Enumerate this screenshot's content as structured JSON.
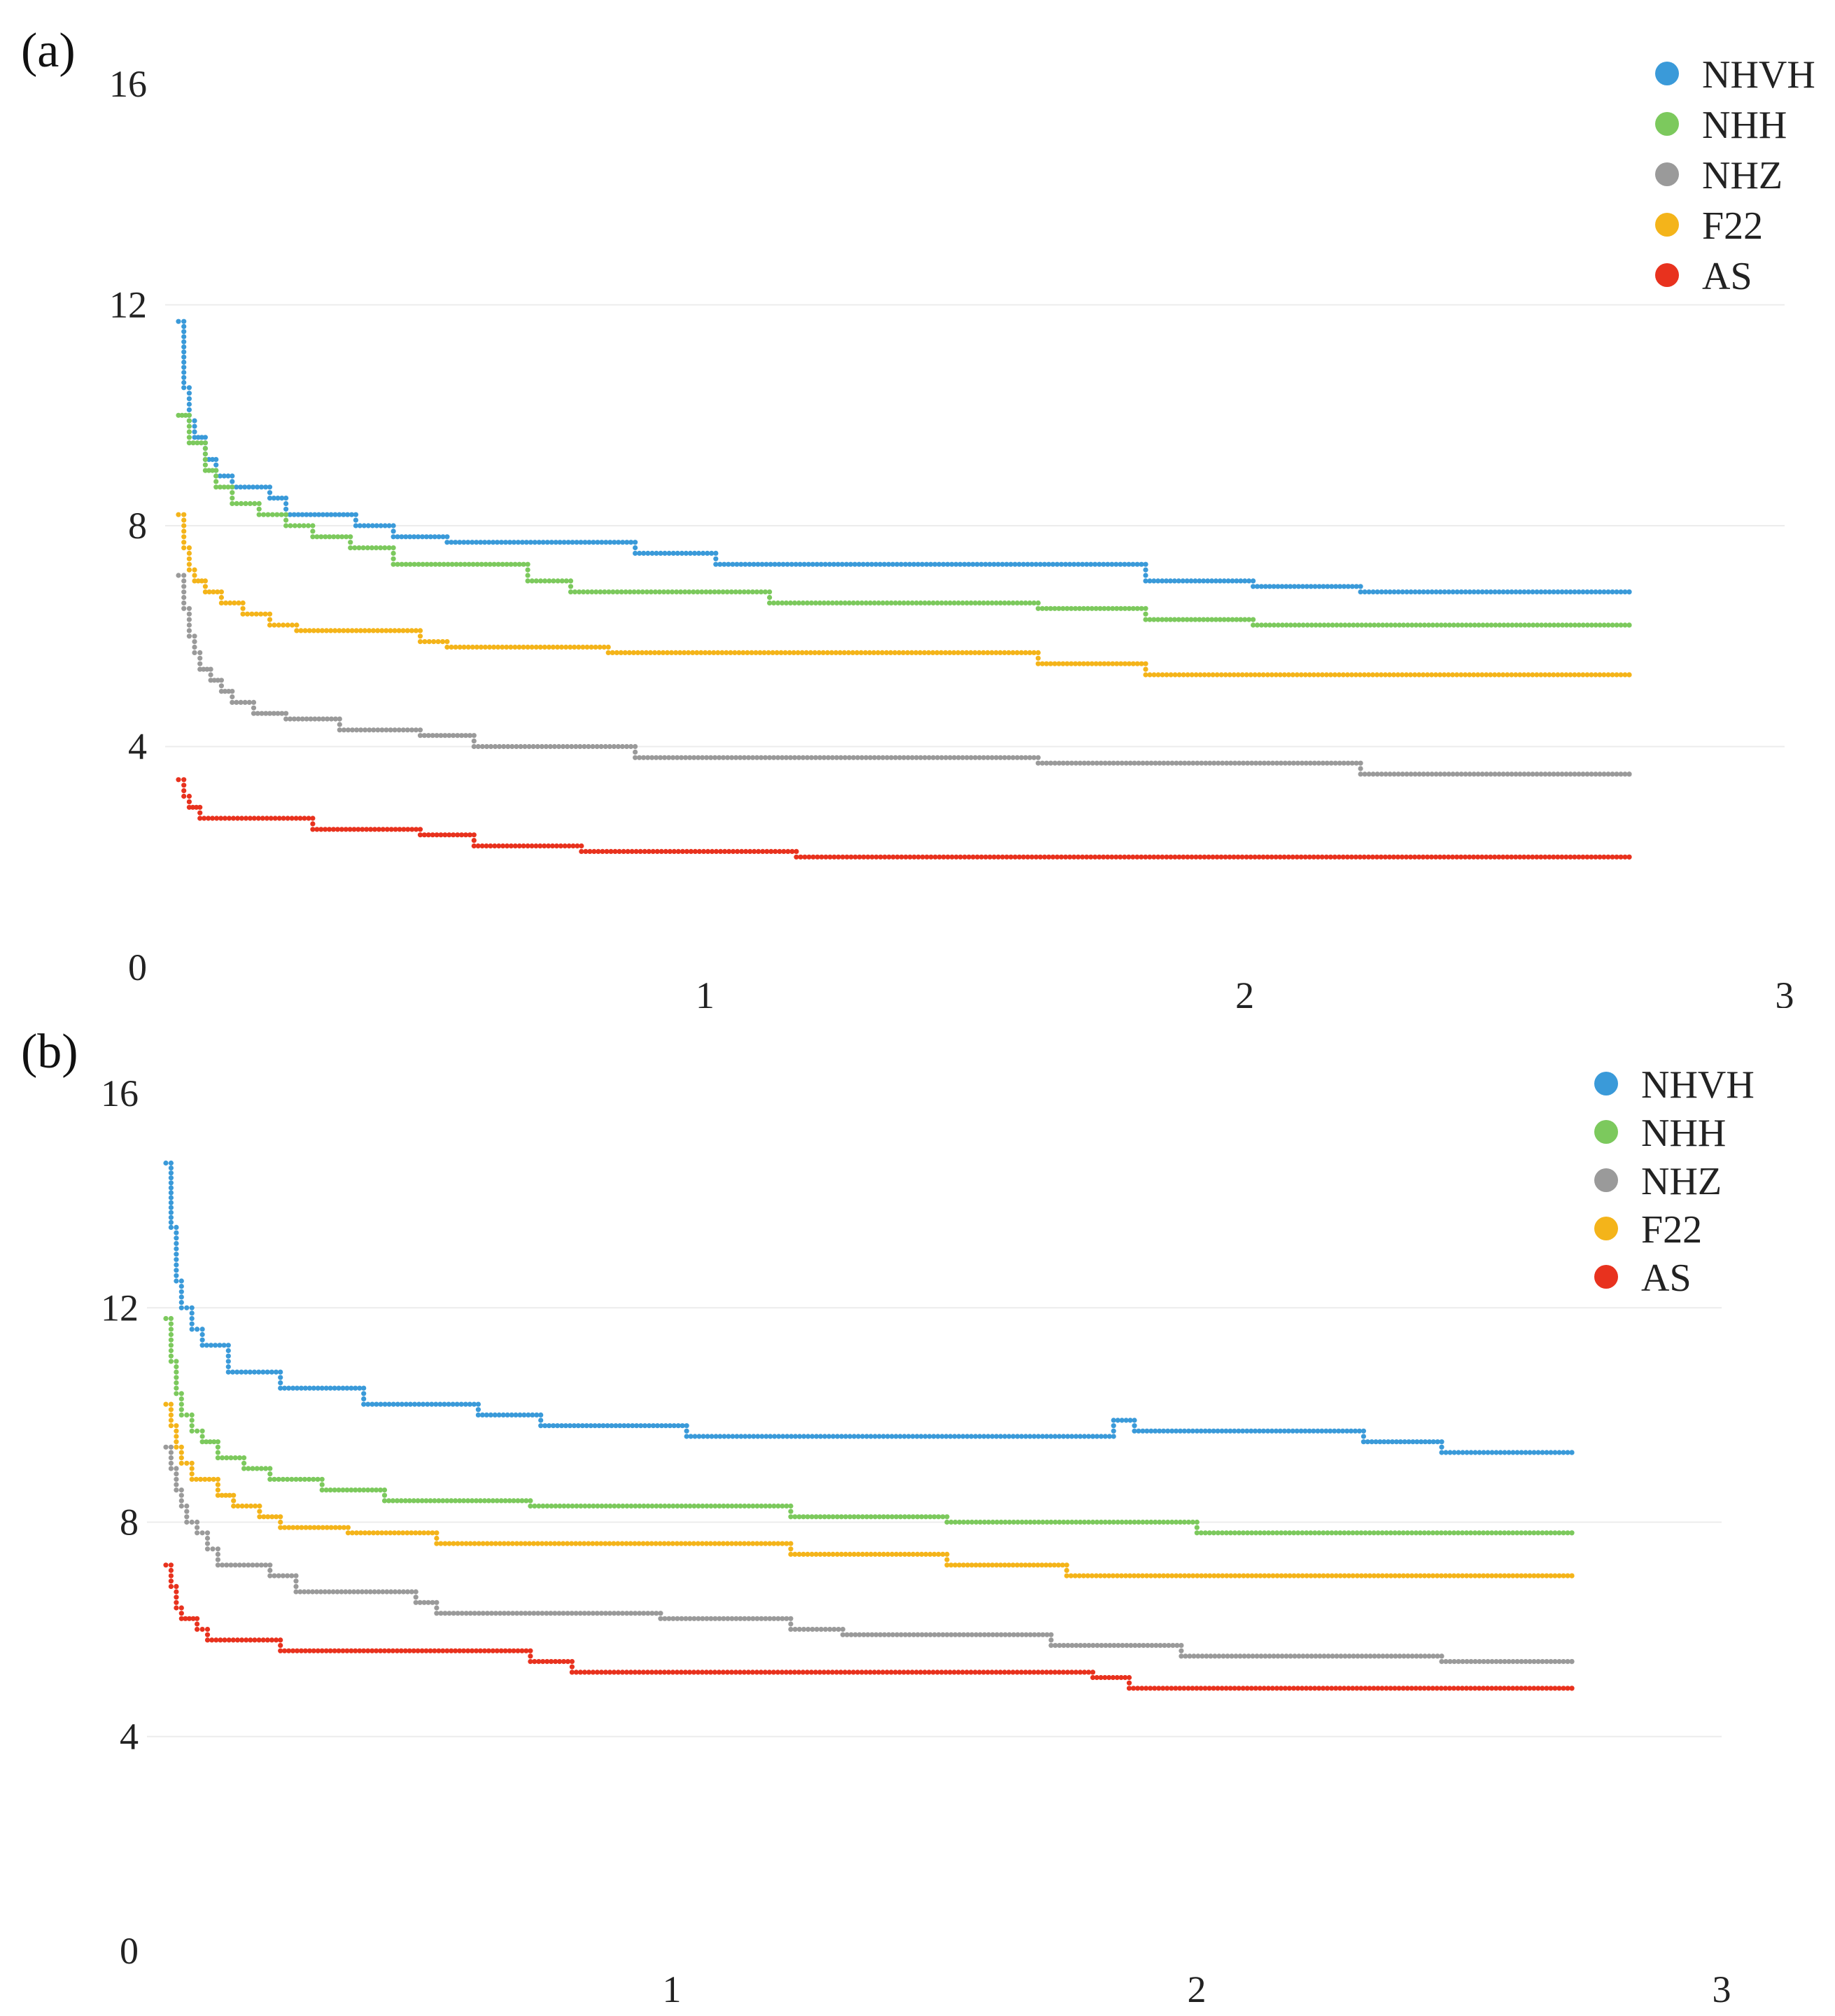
{
  "chart_data": [
    {
      "type": "scatter",
      "panel_label": "(a)",
      "title": "",
      "xlabel": "",
      "ylabel": "",
      "xlim": [
        0,
        3
      ],
      "ylim": [
        0,
        16
      ],
      "x_ticks": [
        "1",
        "2",
        "3"
      ],
      "y_ticks": [
        "0",
        "4",
        "8",
        "12",
        "16"
      ],
      "grid": true,
      "legend_position": "top-right",
      "series": [
        {
          "name": "NHVH",
          "color": "#3a9ad9",
          "steps": [
            [
              0.0,
              11.7
            ],
            [
              0.01,
              10.5
            ],
            [
              0.02,
              9.9
            ],
            [
              0.03,
              9.6
            ],
            [
              0.05,
              9.2
            ],
            [
              0.07,
              8.9
            ],
            [
              0.1,
              8.7
            ],
            [
              0.17,
              8.5
            ],
            [
              0.2,
              8.2
            ],
            [
              0.33,
              8.0
            ],
            [
              0.4,
              7.8
            ],
            [
              0.5,
              7.7
            ],
            [
              0.85,
              7.5
            ],
            [
              1.0,
              7.3
            ],
            [
              1.8,
              7.0
            ],
            [
              2.0,
              6.9
            ],
            [
              2.2,
              6.8
            ],
            [
              2.7,
              6.8
            ]
          ]
        },
        {
          "name": "NHH",
          "color": "#7cc95d",
          "steps": [
            [
              0.0,
              10.0
            ],
            [
              0.02,
              9.5
            ],
            [
              0.05,
              9.0
            ],
            [
              0.07,
              8.7
            ],
            [
              0.1,
              8.4
            ],
            [
              0.15,
              8.2
            ],
            [
              0.2,
              8.0
            ],
            [
              0.25,
              7.8
            ],
            [
              0.32,
              7.6
            ],
            [
              0.4,
              7.3
            ],
            [
              0.65,
              7.0
            ],
            [
              0.73,
              6.8
            ],
            [
              1.1,
              6.6
            ],
            [
              1.6,
              6.5
            ],
            [
              1.8,
              6.3
            ],
            [
              2.0,
              6.2
            ],
            [
              2.7,
              6.2
            ]
          ]
        },
        {
          "name": "NHZ",
          "color": "#9a9a9a",
          "steps": [
            [
              0.0,
              7.1
            ],
            [
              0.01,
              6.5
            ],
            [
              0.02,
              6.0
            ],
            [
              0.03,
              5.7
            ],
            [
              0.04,
              5.4
            ],
            [
              0.06,
              5.2
            ],
            [
              0.08,
              5.0
            ],
            [
              0.1,
              4.8
            ],
            [
              0.14,
              4.6
            ],
            [
              0.2,
              4.5
            ],
            [
              0.3,
              4.3
            ],
            [
              0.45,
              4.2
            ],
            [
              0.55,
              4.0
            ],
            [
              0.85,
              3.8
            ],
            [
              1.6,
              3.7
            ],
            [
              2.2,
              3.5
            ],
            [
              2.7,
              3.5
            ]
          ]
        },
        {
          "name": "F22",
          "color": "#f4b41a",
          "steps": [
            [
              0.0,
              8.2
            ],
            [
              0.01,
              7.6
            ],
            [
              0.02,
              7.2
            ],
            [
              0.03,
              7.0
            ],
            [
              0.05,
              6.8
            ],
            [
              0.08,
              6.6
            ],
            [
              0.12,
              6.4
            ],
            [
              0.17,
              6.2
            ],
            [
              0.22,
              6.1
            ],
            [
              0.45,
              5.9
            ],
            [
              0.5,
              5.8
            ],
            [
              0.8,
              5.7
            ],
            [
              1.6,
              5.5
            ],
            [
              1.8,
              5.3
            ],
            [
              2.7,
              5.3
            ]
          ]
        },
        {
          "name": "AS",
          "color": "#e8321e",
          "steps": [
            [
              0.0,
              3.4
            ],
            [
              0.01,
              3.1
            ],
            [
              0.02,
              2.9
            ],
            [
              0.04,
              2.7
            ],
            [
              0.25,
              2.5
            ],
            [
              0.45,
              2.4
            ],
            [
              0.55,
              2.2
            ],
            [
              0.75,
              2.1
            ],
            [
              1.15,
              2.0
            ],
            [
              2.7,
              2.0
            ]
          ]
        }
      ]
    },
    {
      "type": "scatter",
      "panel_label": "(b)",
      "title": "",
      "xlabel": "",
      "ylabel": "",
      "xlim": [
        0,
        3
      ],
      "ylim": [
        0,
        16
      ],
      "x_ticks": [
        "1",
        "2",
        "3"
      ],
      "y_ticks": [
        "0",
        "4",
        "8",
        "12",
        "16"
      ],
      "grid": true,
      "legend_position": "top-right",
      "series": [
        {
          "name": "NHVH",
          "color": "#3a9ad9",
          "steps": [
            [
              0.0,
              14.7
            ],
            [
              0.01,
              13.5
            ],
            [
              0.02,
              12.5
            ],
            [
              0.03,
              12.0
            ],
            [
              0.05,
              11.6
            ],
            [
              0.07,
              11.3
            ],
            [
              0.12,
              10.8
            ],
            [
              0.22,
              10.5
            ],
            [
              0.38,
              10.2
            ],
            [
              0.6,
              10.0
            ],
            [
              0.72,
              9.8
            ],
            [
              1.0,
              9.6
            ],
            [
              1.78,
              9.6
            ],
            [
              1.82,
              9.9
            ],
            [
              1.86,
              9.7
            ],
            [
              2.3,
              9.5
            ],
            [
              2.45,
              9.3
            ],
            [
              2.7,
              9.3
            ]
          ]
        },
        {
          "name": "NHH",
          "color": "#7cc95d",
          "steps": [
            [
              0.0,
              11.8
            ],
            [
              0.01,
              11.0
            ],
            [
              0.02,
              10.4
            ],
            [
              0.03,
              10.0
            ],
            [
              0.05,
              9.7
            ],
            [
              0.07,
              9.5
            ],
            [
              0.1,
              9.2
            ],
            [
              0.15,
              9.0
            ],
            [
              0.2,
              8.8
            ],
            [
              0.3,
              8.6
            ],
            [
              0.42,
              8.4
            ],
            [
              0.7,
              8.3
            ],
            [
              1.2,
              8.1
            ],
            [
              1.5,
              8.0
            ],
            [
              1.98,
              7.8
            ],
            [
              2.7,
              7.8
            ]
          ]
        },
        {
          "name": "NHZ",
          "color": "#9a9a9a",
          "steps": [
            [
              0.0,
              9.4
            ],
            [
              0.01,
              9.0
            ],
            [
              0.02,
              8.6
            ],
            [
              0.03,
              8.3
            ],
            [
              0.04,
              8.0
            ],
            [
              0.06,
              7.8
            ],
            [
              0.08,
              7.5
            ],
            [
              0.1,
              7.2
            ],
            [
              0.2,
              7.0
            ],
            [
              0.25,
              6.7
            ],
            [
              0.48,
              6.5
            ],
            [
              0.52,
              6.3
            ],
            [
              0.95,
              6.2
            ],
            [
              1.2,
              6.0
            ],
            [
              1.3,
              5.9
            ],
            [
              1.7,
              5.7
            ],
            [
              1.95,
              5.5
            ],
            [
              2.45,
              5.4
            ],
            [
              2.7,
              5.4
            ]
          ]
        },
        {
          "name": "F22",
          "color": "#f4b41a",
          "steps": [
            [
              0.0,
              10.2
            ],
            [
              0.01,
              9.8
            ],
            [
              0.02,
              9.4
            ],
            [
              0.03,
              9.1
            ],
            [
              0.05,
              8.8
            ],
            [
              0.1,
              8.5
            ],
            [
              0.13,
              8.3
            ],
            [
              0.18,
              8.1
            ],
            [
              0.22,
              7.9
            ],
            [
              0.35,
              7.8
            ],
            [
              0.52,
              7.6
            ],
            [
              1.2,
              7.4
            ],
            [
              1.5,
              7.2
            ],
            [
              1.73,
              7.0
            ],
            [
              2.7,
              7.0
            ]
          ]
        },
        {
          "name": "AS",
          "color": "#e8321e",
          "steps": [
            [
              0.0,
              7.2
            ],
            [
              0.01,
              6.8
            ],
            [
              0.02,
              6.4
            ],
            [
              0.03,
              6.2
            ],
            [
              0.06,
              6.0
            ],
            [
              0.08,
              5.8
            ],
            [
              0.22,
              5.6
            ],
            [
              0.7,
              5.4
            ],
            [
              0.78,
              5.2
            ],
            [
              1.78,
              5.1
            ],
            [
              1.85,
              4.9
            ],
            [
              2.7,
              4.9
            ]
          ]
        }
      ]
    }
  ]
}
